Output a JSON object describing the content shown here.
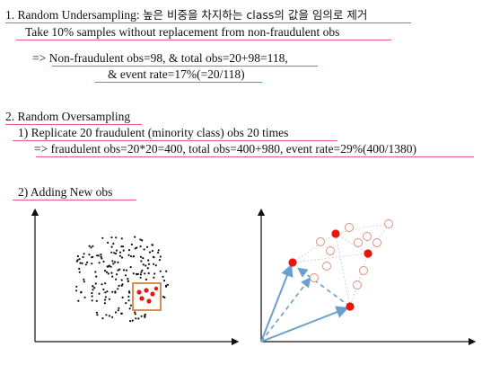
{
  "section1": {
    "heading_prefix": "1. Random Undersampling: ",
    "heading_korean": "높은 비중을 차지하는 class의 값을 임의로 제거",
    "line1": "Take 10% samples without replacement from non-fraudulent obs",
    "line2": "=> Non-fraudulent obs=98, & total obs=20+98=118,",
    "line3": "& event rate=17%(=20/118)"
  },
  "section2": {
    "heading": "2. Random Oversampling",
    "line1": "1) Replicate 20 fraudulent (minority class) obs 20 times",
    "line2": "=> fraudulent obs=20*20=400, total obs=400+980, event rate=29%(400/1380)"
  },
  "section3": {
    "heading": "2) Adding New obs"
  },
  "colors": {
    "underline": "#e8579a",
    "minority_point": "#e8160c",
    "selection_box": "#c8742a",
    "vector_arrow": "#6aa0cf",
    "synthetic_point": "#e08a7a"
  }
}
